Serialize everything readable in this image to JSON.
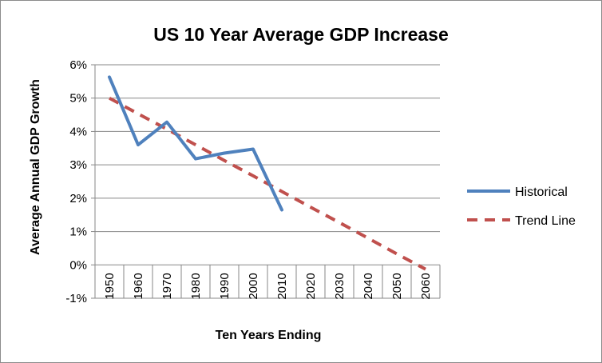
{
  "chart_data": {
    "type": "line",
    "title": "US 10 Year Average GDP Increase",
    "xlabel": "Ten Years Ending",
    "ylabel": "Average Annual GDP Growth",
    "categories": [
      "1950",
      "1960",
      "1970",
      "1980",
      "1990",
      "2000",
      "2010",
      "2020",
      "2030",
      "2040",
      "2050",
      "2060"
    ],
    "ylim": [
      -1,
      6
    ],
    "ytick_labels": [
      "-1%",
      "0%",
      "1%",
      "2%",
      "3%",
      "4%",
      "5%",
      "6%"
    ],
    "ytick_values": [
      -1,
      0,
      1,
      2,
      3,
      4,
      5,
      6
    ],
    "grid": "horizontal",
    "legend_position": "right",
    "series": [
      {
        "name": "Historical",
        "style": "solid",
        "color": "#4f81bd",
        "values": [
          5.63,
          3.6,
          4.28,
          3.18,
          3.35,
          3.47,
          1.65,
          null,
          null,
          null,
          null,
          null
        ]
      },
      {
        "name": "Trend Line",
        "style": "dashed",
        "color": "#c0504d",
        "values": [
          5.0,
          4.53,
          4.07,
          3.6,
          3.13,
          2.67,
          2.2,
          1.73,
          1.27,
          0.8,
          0.33,
          -0.13
        ]
      }
    ]
  }
}
